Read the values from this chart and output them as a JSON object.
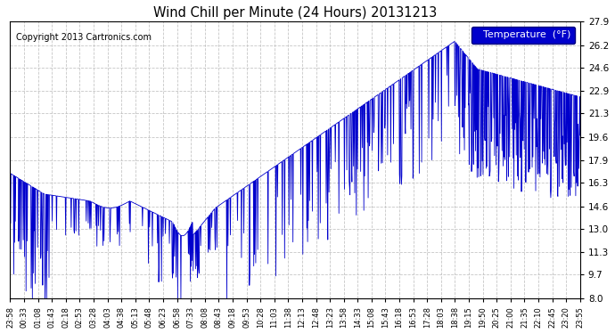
{
  "title": "Wind Chill per Minute (24 Hours) 20131213",
  "copyright": "Copyright 2013 Cartronics.com",
  "legend_label": "Temperature  (°F)",
  "yticks": [
    8.0,
    9.7,
    11.3,
    13.0,
    14.6,
    16.3,
    17.9,
    19.6,
    21.3,
    22.9,
    24.6,
    26.2,
    27.9
  ],
  "xtick_labels": [
    "23:58",
    "00:33",
    "01:08",
    "01:43",
    "02:18",
    "02:53",
    "03:28",
    "04:03",
    "04:38",
    "05:13",
    "05:48",
    "06:23",
    "06:58",
    "07:33",
    "08:08",
    "08:43",
    "09:18",
    "09:53",
    "10:28",
    "11:03",
    "11:38",
    "12:13",
    "12:48",
    "13:23",
    "13:58",
    "14:33",
    "15:08",
    "15:43",
    "16:18",
    "16:53",
    "17:28",
    "18:03",
    "18:38",
    "19:15",
    "19:50",
    "20:25",
    "21:00",
    "21:35",
    "22:10",
    "22:45",
    "23:20",
    "23:55"
  ],
  "ymin": 8.0,
  "ymax": 27.9,
  "line_color": "#0000CC",
  "background_color": "#ffffff",
  "legend_bg": "#0000CC",
  "legend_text_color": "#ffffff",
  "title_color": "#000000",
  "copyright_color": "#000000",
  "grid_color": "#c0c0c0"
}
